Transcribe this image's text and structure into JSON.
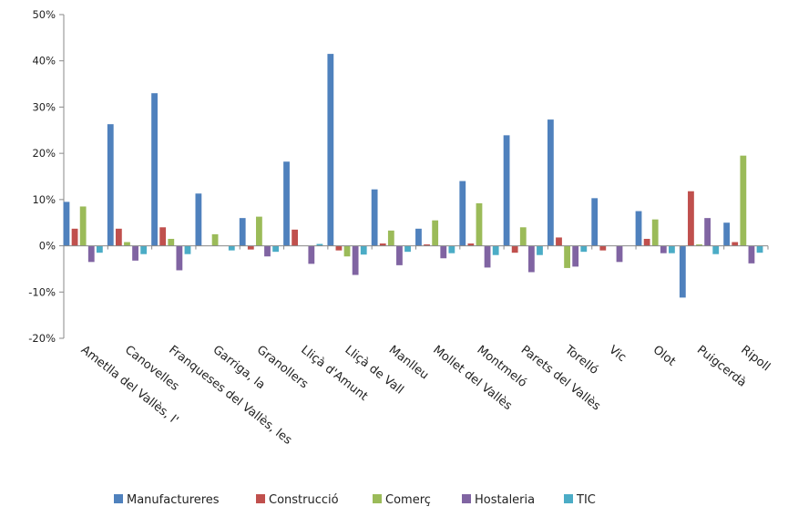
{
  "chart_data": {
    "type": "bar",
    "title": "",
    "xlabel": "",
    "ylabel": "",
    "ylim": [
      -20,
      50
    ],
    "yticks": [
      -20,
      -10,
      0,
      10,
      20,
      30,
      40,
      50
    ],
    "ytick_labels": [
      "-20%",
      "-10%",
      "0%",
      "10%",
      "20%",
      "30%",
      "40%",
      "50%"
    ],
    "grid": false,
    "legend_position": "bottom",
    "categories": [
      "Ametlla del Vallès, l'",
      "Canovelles",
      "Franqueses del Vallès, les",
      "Garriga, la",
      "Granollers",
      "Lliçà d'Amunt",
      "Lliçà de Vall",
      "Manlleu",
      "Mollet del Vallès",
      "Montmeló",
      "Parets del Vallès",
      "Torelló",
      "Vic",
      "Olot",
      "Puigcerdà",
      "Ripoll"
    ],
    "series": [
      {
        "name": "Manufactureres",
        "color": "#4F81BD",
        "values": [
          9.5,
          26.3,
          33.0,
          11.3,
          6.0,
          18.2,
          41.5,
          12.2,
          3.7,
          14.0,
          23.9,
          27.3,
          10.3,
          7.5,
          -11.2,
          5.0
        ]
      },
      {
        "name": "Construcció",
        "color": "#C0504D",
        "values": [
          3.7,
          3.7,
          4.0,
          0.0,
          -0.8,
          3.5,
          -1.0,
          0.5,
          0.3,
          0.5,
          -1.5,
          1.8,
          -1.0,
          1.5,
          11.8,
          0.8
        ]
      },
      {
        "name": "Comerç",
        "color": "#9BBB59",
        "values": [
          8.5,
          0.8,
          1.5,
          2.5,
          6.3,
          0.0,
          -2.3,
          3.3,
          5.5,
          9.2,
          4.0,
          -4.8,
          0.0,
          5.7,
          0.3,
          19.5
        ]
      },
      {
        "name": "Hostaleria",
        "color": "#8064A2",
        "values": [
          -3.5,
          -3.2,
          -5.3,
          0.0,
          -2.3,
          -3.9,
          -6.3,
          -4.2,
          -2.7,
          -4.7,
          -5.7,
          -4.5,
          -3.5,
          -1.6,
          6.0,
          -3.8
        ]
      },
      {
        "name": "TIC",
        "color": "#4BACC6",
        "values": [
          -1.5,
          -1.8,
          -1.8,
          -1.0,
          -1.3,
          0.4,
          -1.9,
          -1.3,
          -1.6,
          -2.0,
          -2.0,
          -1.3,
          0.0,
          -1.6,
          -1.8,
          -1.5
        ]
      }
    ]
  }
}
